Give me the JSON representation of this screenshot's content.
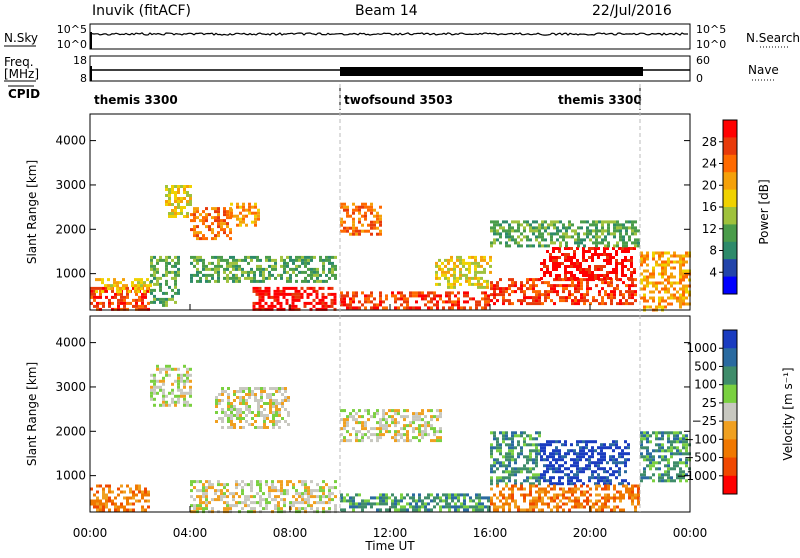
{
  "header": {
    "station": "Inuvik (fitACF)",
    "beam": "Beam 14",
    "date": "22/Jul/2016"
  },
  "top_panels": {
    "nsky_label": "N.Sky",
    "nsky_ticks": [
      "10^5",
      "10^0"
    ],
    "nsearch_label": "N.Search",
    "nsearch_ticks": [
      "10^5",
      "10^0"
    ],
    "freq_label_1": "Freq.",
    "freq_label_2": "[MHz]",
    "freq_ticks": [
      "18",
      "8"
    ],
    "nave_label": "Nave",
    "nave_ticks": [
      "60",
      "0"
    ],
    "cpid_label": "CPID",
    "cpid_segments": [
      {
        "label": "themis 3300",
        "start_hour": 0,
        "end_hour": 10
      },
      {
        "label": "twofsound 3503",
        "start_hour": 10,
        "end_hour": 22
      },
      {
        "label": "themis 3300",
        "start_hour": 22,
        "end_hour": 24
      }
    ]
  },
  "power_colorbar": {
    "title": "Power [dB]",
    "ticks": [
      "28",
      "24",
      "20",
      "16",
      "12",
      "8",
      "4"
    ],
    "colors": [
      "#ff0000",
      "#e83a0a",
      "#ff6a00",
      "#f5a10a",
      "#f0d200",
      "#9fc23c",
      "#4a9c4a",
      "#2d8a6a",
      "#2244aa",
      "#0000ff"
    ]
  },
  "velocity_colorbar": {
    "title": "Velocity [m s⁻¹]",
    "ticks": [
      "1000",
      "500",
      "100",
      "25",
      "−25",
      "−100",
      "−500",
      "−1000"
    ],
    "colors": [
      "#1a3cc0",
      "#2a6aa0",
      "#3f8c6a",
      "#7ad040",
      "#c8c8c0",
      "#f0a020",
      "#f07800",
      "#f04800",
      "#ff0000"
    ]
  },
  "chart_data": {
    "type": "heatmap",
    "panels": [
      {
        "name": "Power",
        "ylabel": "Slant Range [km]",
        "quantity": "Power [dB]"
      },
      {
        "name": "Velocity",
        "ylabel": "Slant Range [km]",
        "quantity": "Velocity [m s⁻¹]"
      }
    ],
    "xlabel": "Time UT",
    "x_ticks": [
      "00:00",
      "04:00",
      "08:00",
      "12:00",
      "16:00",
      "20:00",
      "00:00"
    ],
    "xlim_hours": [
      0,
      24
    ],
    "y_ticks": [
      "4000",
      "3000",
      "2000",
      "1000"
    ],
    "ylim_km": [
      180,
      4600
    ],
    "mode_change_hours": [
      10,
      22
    ],
    "power_regions": [
      {
        "t0": 0.0,
        "t1": 2.4,
        "r0": 200,
        "r1": 700,
        "level": 1
      },
      {
        "t0": 0.2,
        "t1": 2.4,
        "r0": 600,
        "r1": 900,
        "level": 4
      },
      {
        "t0": 2.4,
        "t1": 3.6,
        "r0": 300,
        "r1": 1400,
        "level": 6
      },
      {
        "t0": 3.0,
        "t1": 4.0,
        "r0": 2300,
        "r1": 3000,
        "level": 4
      },
      {
        "t0": 4.0,
        "t1": 5.6,
        "r0": 1800,
        "r1": 2500,
        "level": 2
      },
      {
        "t0": 5.6,
        "t1": 6.8,
        "r0": 2100,
        "r1": 2600,
        "level": 3
      },
      {
        "t0": 6.5,
        "t1": 9.8,
        "r0": 220,
        "r1": 700,
        "level": 0
      },
      {
        "t0": 4.0,
        "t1": 9.8,
        "r0": 800,
        "r1": 1400,
        "level": 6
      },
      {
        "t0": 10.0,
        "t1": 11.6,
        "r0": 1900,
        "r1": 2600,
        "level": 2
      },
      {
        "t0": 10.0,
        "t1": 16.0,
        "r0": 200,
        "r1": 600,
        "level": 1
      },
      {
        "t0": 13.8,
        "t1": 16.0,
        "r0": 700,
        "r1": 1400,
        "level": 4
      },
      {
        "t0": 16.0,
        "t1": 21.8,
        "r0": 300,
        "r1": 900,
        "level": 1
      },
      {
        "t0": 18.0,
        "t1": 21.8,
        "r0": 900,
        "r1": 1600,
        "level": 0
      },
      {
        "t0": 16.0,
        "t1": 22.0,
        "r0": 1600,
        "r1": 2200,
        "level": 6
      },
      {
        "t0": 22.0,
        "t1": 24.0,
        "r0": 200,
        "r1": 1500,
        "level": 3
      }
    ],
    "velocity_regions": [
      {
        "t0": 0.0,
        "t1": 2.4,
        "r0": 200,
        "r1": 800,
        "level": 6
      },
      {
        "t0": 2.4,
        "t1": 4.0,
        "r0": 2600,
        "r1": 3500,
        "level": 4
      },
      {
        "t0": 4.0,
        "t1": 9.8,
        "r0": 200,
        "r1": 900,
        "level": 4
      },
      {
        "t0": 5.0,
        "t1": 8.0,
        "r0": 2100,
        "r1": 3000,
        "level": 4
      },
      {
        "t0": 10.0,
        "t1": 14.0,
        "r0": 1800,
        "r1": 2500,
        "level": 4
      },
      {
        "t0": 10.0,
        "t1": 16.0,
        "r0": 200,
        "r1": 600,
        "level": 2
      },
      {
        "t0": 16.0,
        "t1": 18.0,
        "r0": 800,
        "r1": 2000,
        "level": 2
      },
      {
        "t0": 18.0,
        "t1": 21.5,
        "r0": 800,
        "r1": 1800,
        "level": 0
      },
      {
        "t0": 16.0,
        "t1": 22.0,
        "r0": 200,
        "r1": 800,
        "level": 6
      },
      {
        "t0": 22.0,
        "t1": 24.0,
        "r0": 900,
        "r1": 2000,
        "level": 2
      }
    ]
  }
}
